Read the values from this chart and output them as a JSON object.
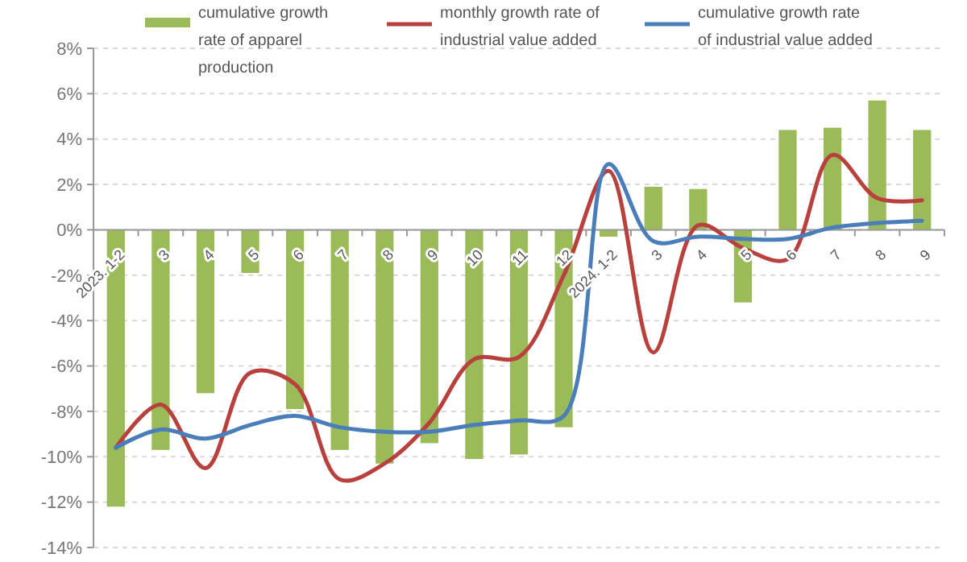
{
  "chart_data": {
    "type": "bar",
    "categories": [
      "2023. 1-2",
      "3",
      "4",
      "5",
      "6",
      "7",
      "8",
      "9",
      "10",
      "11",
      "12",
      "2024. 1-2",
      "3",
      "4",
      "5",
      "6",
      "7",
      "8",
      "9"
    ],
    "series": [
      {
        "name": "cumulative growth rate of apparel production",
        "color": "#9bbb59",
        "values": [
          -12.2,
          -9.7,
          -7.2,
          -1.9,
          -7.9,
          -9.7,
          -10.3,
          -9.4,
          -10.1,
          -9.9,
          -8.7,
          -0.3,
          1.9,
          1.8,
          -3.2,
          4.4,
          4.5,
          5.7,
          4.4
        ]
      },
      {
        "name": "monthly growth rate of industrial value added",
        "type": "line",
        "color": "#b8413e",
        "values": [
          -9.6,
          -7.7,
          -10.5,
          -6.3,
          -6.8,
          -11.0,
          -10.3,
          -8.5,
          -5.7,
          -5.6,
          -2.0,
          2.6,
          -5.4,
          0.2,
          -0.8,
          -1.3,
          3.3,
          1.4,
          1.3
        ]
      },
      {
        "name": "cumulative growth rate of industrial value added",
        "type": "line",
        "color": "#4a7ebb",
        "values": [
          -9.6,
          -8.8,
          -9.2,
          -8.6,
          -8.2,
          -8.7,
          -8.9,
          -8.9,
          -8.6,
          -8.4,
          -8.2,
          2.9,
          -0.5,
          -0.3,
          -0.4,
          -0.4,
          0.1,
          0.3,
          0.4
        ]
      }
    ],
    "ylim": [
      -14,
      8
    ],
    "yticks": [
      {
        "value": -14,
        "label": "-14%"
      },
      {
        "value": -12,
        "label": "-12%"
      },
      {
        "value": -10,
        "label": "-10%"
      },
      {
        "value": -8,
        "label": "-8%"
      },
      {
        "value": -6,
        "label": "-6%"
      },
      {
        "value": -4,
        "label": "-4%"
      },
      {
        "value": -2,
        "label": "-2%"
      },
      {
        "value": 0,
        "label": "0%"
      },
      {
        "value": 2,
        "label": "2%"
      },
      {
        "value": 4,
        "label": "4%"
      },
      {
        "value": 6,
        "label": "6%"
      },
      {
        "value": 8,
        "label": "8%"
      }
    ],
    "grid": "y",
    "legend": "top",
    "marker": "none",
    "line_style": "solid"
  }
}
